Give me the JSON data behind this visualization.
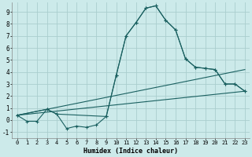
{
  "xlabel": "Humidex (Indice chaleur)",
  "bg_color": "#cceaea",
  "line_color": "#1a6060",
  "grid_color": "#aacece",
  "xlim": [
    -0.5,
    23.5
  ],
  "ylim": [
    -1.5,
    9.8
  ],
  "xticks": [
    0,
    1,
    2,
    3,
    4,
    5,
    6,
    7,
    8,
    9,
    10,
    11,
    12,
    13,
    14,
    15,
    16,
    17,
    18,
    19,
    20,
    21,
    22,
    23
  ],
  "yticks": [
    -1,
    0,
    1,
    2,
    3,
    4,
    5,
    6,
    7,
    8,
    9
  ],
  "series1_x": [
    0,
    1,
    2,
    3,
    4,
    5,
    6,
    7,
    8,
    9,
    10,
    11,
    12,
    13,
    14,
    15,
    16,
    17,
    18,
    19,
    20,
    21,
    22,
    23
  ],
  "series1_y": [
    0.4,
    -0.1,
    -0.1,
    0.9,
    0.5,
    -0.7,
    -0.5,
    -0.6,
    -0.4,
    0.3,
    3.7,
    7.0,
    8.1,
    9.3,
    9.5,
    8.3,
    7.5,
    5.1,
    4.4,
    4.3,
    4.2,
    3.0,
    3.0,
    2.4
  ],
  "series2_x": [
    0,
    3,
    4,
    9,
    10,
    11,
    12,
    13,
    14,
    15,
    16,
    17,
    18,
    19,
    20,
    21,
    22,
    23
  ],
  "series2_y": [
    0.4,
    0.9,
    0.5,
    0.3,
    3.7,
    7.0,
    8.1,
    9.3,
    9.5,
    8.3,
    7.5,
    5.1,
    4.4,
    4.3,
    4.2,
    3.0,
    3.0,
    2.4
  ],
  "series3_x": [
    0,
    23
  ],
  "series3_y": [
    0.4,
    4.2
  ],
  "series4_x": [
    0,
    23
  ],
  "series4_y": [
    0.4,
    2.4
  ]
}
